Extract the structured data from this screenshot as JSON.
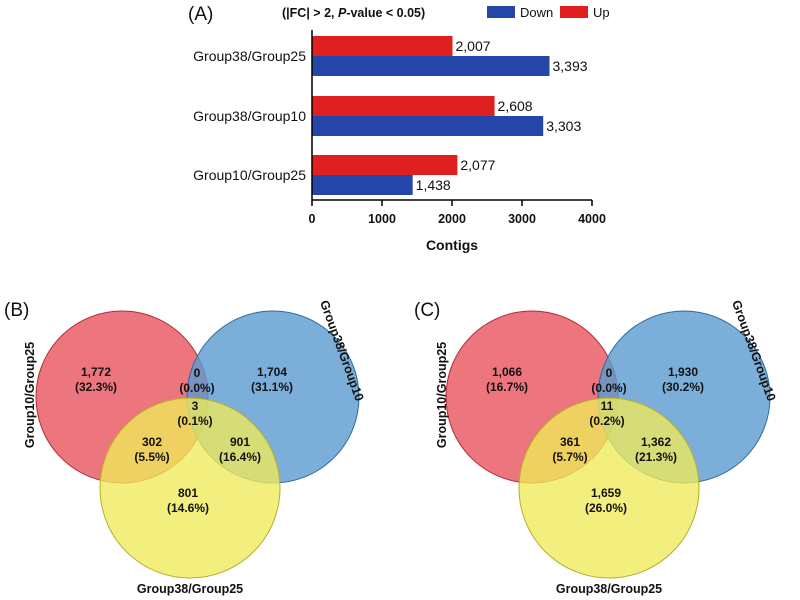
{
  "panel_a": {
    "tag": "(A)",
    "criteria_prefix": "(|FC| > 2, ",
    "criteria_italic": "P",
    "criteria_suffix": "-value < 0.05)"
  },
  "panel_b": {
    "tag": "(B)"
  },
  "panel_c": {
    "tag": "(C)"
  },
  "colors": {
    "down": "#2346a8",
    "up": "#e02020",
    "venn_red": "#e8525e",
    "venn_blue": "#5a9bd0",
    "venn_yellow": "#f0ea5a"
  },
  "chart_data": [
    {
      "type": "bar",
      "orientation": "horizontal",
      "title": "(|FC| > 2, P-value < 0.05)",
      "categories": [
        "Group38/Group25",
        "Group38/Group10",
        "Group10/Group25"
      ],
      "series": [
        {
          "name": "Up",
          "values": [
            2007,
            2608,
            2077
          ],
          "labels": [
            "2,007",
            "2,608",
            "2,077"
          ]
        },
        {
          "name": "Down",
          "values": [
            3393,
            3303,
            1438
          ],
          "labels": [
            "3,393",
            "3,303",
            "1,438"
          ]
        }
      ],
      "legend": [
        "Down",
        "Up"
      ],
      "legend_position": "top-right",
      "xlabel": "Contigs",
      "xlim": [
        0,
        4000
      ],
      "xticks": [
        0,
        1000,
        2000,
        3000,
        4000
      ]
    },
    {
      "type": "venn",
      "panel": "B",
      "sets": [
        "Group10/Group25",
        "Group38/Group10",
        "Group38/Group25"
      ],
      "regions": [
        {
          "region": "Group10/Group25 only",
          "count": "1,772",
          "percent": "(32.3%)"
        },
        {
          "region": "Group10/Group25 ∩ Group38/Group10",
          "count": "0",
          "percent": "(0.0%)"
        },
        {
          "region": "Group38/Group10 only",
          "count": "1,704",
          "percent": "(31.1%)"
        },
        {
          "region": "all three",
          "count": "3",
          "percent": "(0.1%)"
        },
        {
          "region": "Group10/Group25 ∩ Group38/Group25",
          "count": "302",
          "percent": "(5.5%)"
        },
        {
          "region": "Group38/Group10 ∩ Group38/Group25",
          "count": "901",
          "percent": "(16.4%)"
        },
        {
          "region": "Group38/Group25 only",
          "count": "801",
          "percent": "(14.6%)"
        }
      ]
    },
    {
      "type": "venn",
      "panel": "C",
      "sets": [
        "Group10/Group25",
        "Group38/Group10",
        "Group38/Group25"
      ],
      "regions": [
        {
          "region": "Group10/Group25 only",
          "count": "1,066",
          "percent": "(16.7%)"
        },
        {
          "region": "Group10/Group25 ∩ Group38/Group10",
          "count": "0",
          "percent": "(0.0%)"
        },
        {
          "region": "Group38/Group10 only",
          "count": "1,930",
          "percent": "(30.2%)"
        },
        {
          "region": "all three",
          "count": "11",
          "percent": "(0.2%)"
        },
        {
          "region": "Group10/Group25 ∩ Group38/Group25",
          "count": "361",
          "percent": "(5.7%)"
        },
        {
          "region": "Group38/Group10 ∩ Group38/Group25",
          "count": "1,362",
          "percent": "(21.3%)"
        },
        {
          "region": "Group38/Group25 only",
          "count": "1,659",
          "percent": "(26.0%)"
        }
      ]
    }
  ]
}
